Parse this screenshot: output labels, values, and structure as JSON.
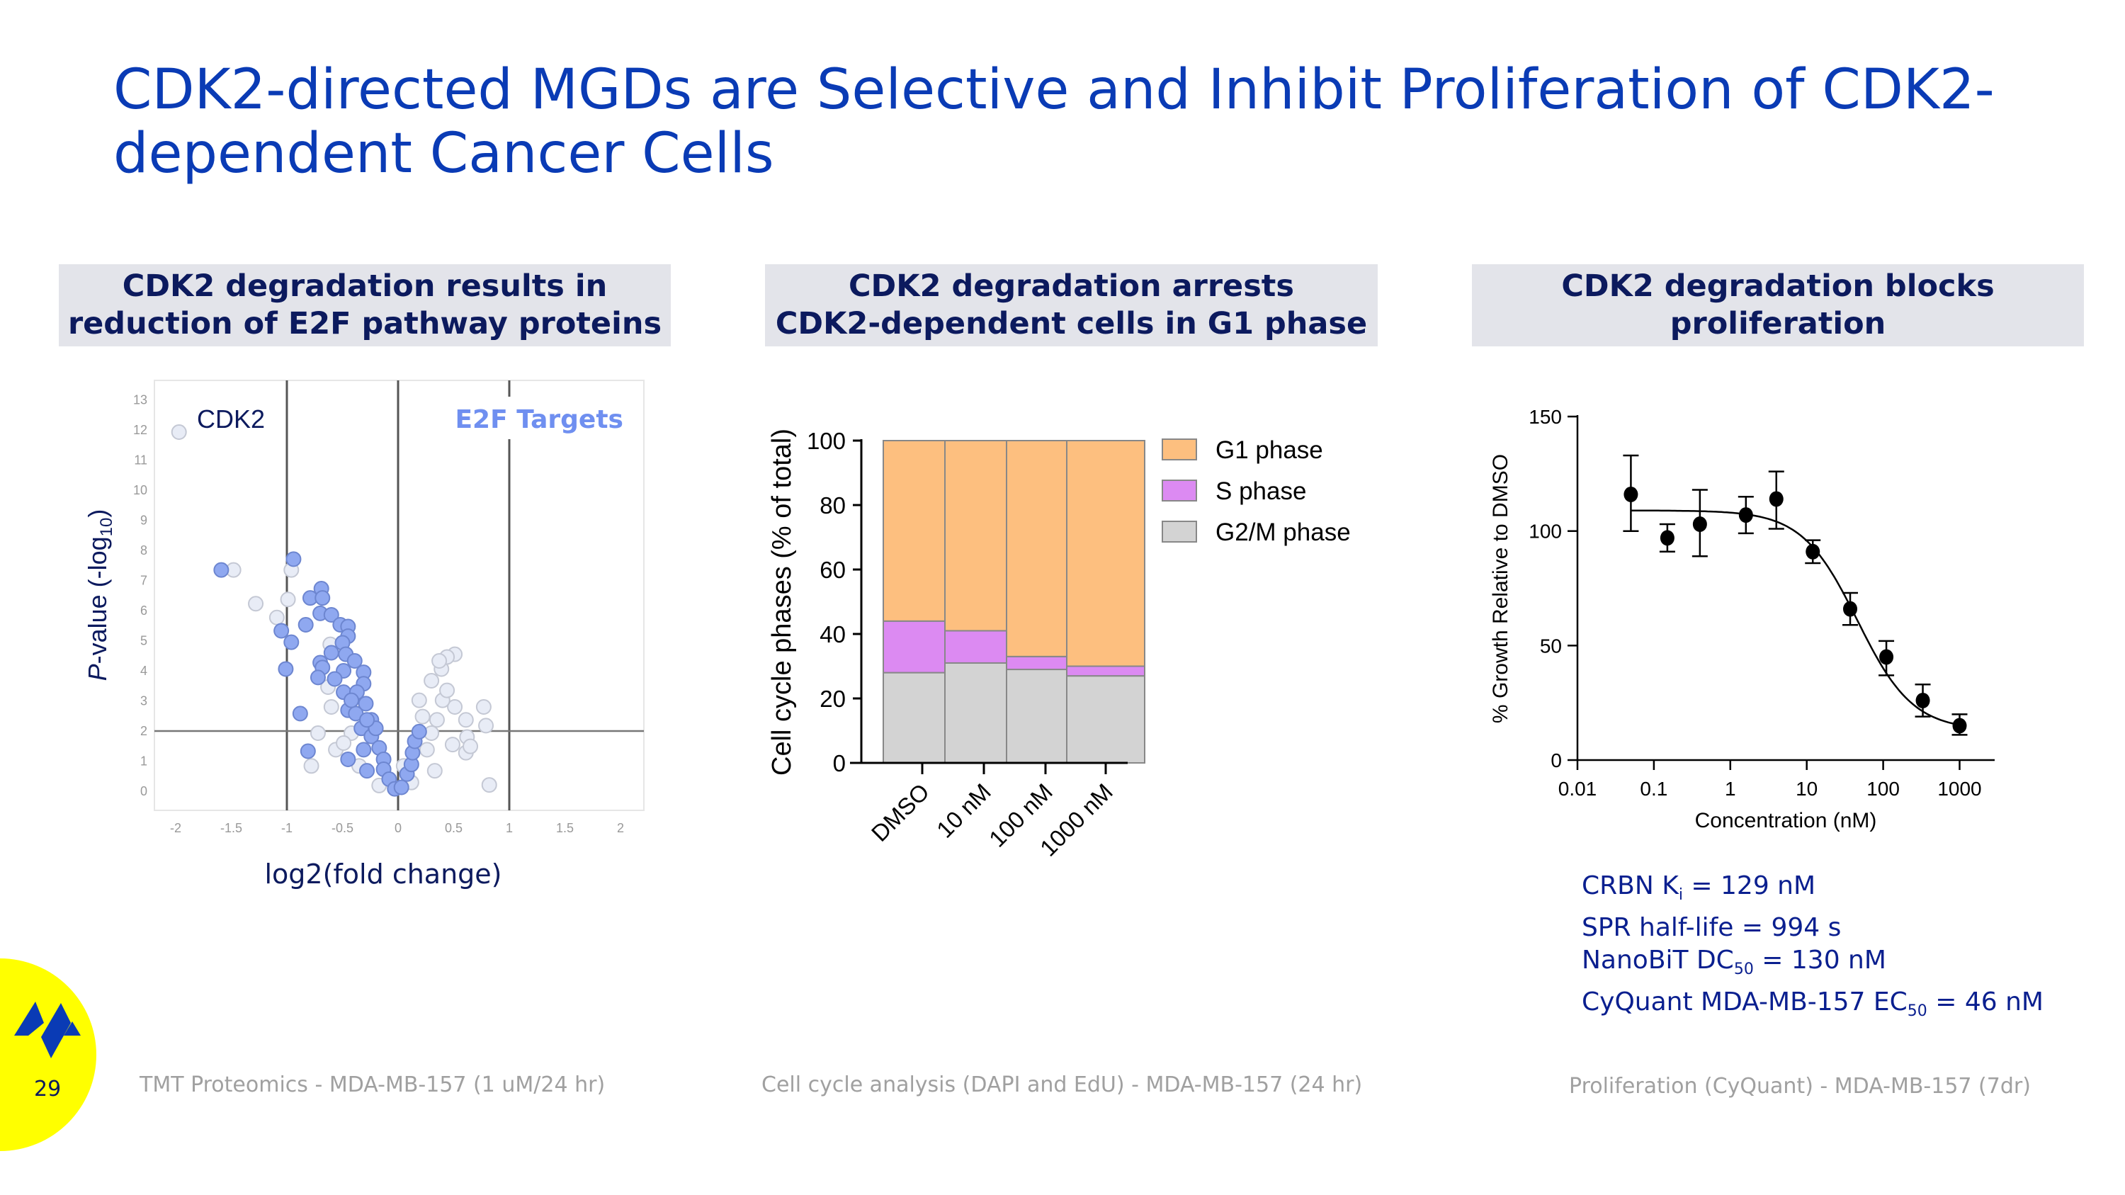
{
  "title": "CDK2-directed MGDs are Selective and Inhibit Proliferation of CDK2-dependent Cancer Cells",
  "panels": [
    {
      "header_line1": "CDK2 degradation results in",
      "header_line2": "reduction of E2F pathway proteins",
      "footer": "TMT Proteomics  - MDA-MB-157 (1 uM/24 hr)"
    },
    {
      "header_line1": "CDK2 degradation arrests",
      "header_line2": "CDK2-dependent cells in G1 phase",
      "footer": "Cell cycle analysis (DAPI and EdU) - MDA-MB-157 (24 hr)"
    },
    {
      "header_line1": "CDK2 degradation blocks proliferation",
      "footer": "Proliferation (CyQuant) - MDA-MB-157 (7dr)"
    }
  ],
  "stats": [
    {
      "pre": "CRBN K",
      "sub": "i",
      "post": " = 129 nM"
    },
    {
      "pre": "SPR half-life = 994 s",
      "sub": "",
      "post": ""
    },
    {
      "pre": "NanoBiT DC",
      "sub": "50",
      "post": " = 130 nM"
    },
    {
      "pre": "CyQuant MDA-MB-157 EC",
      "sub": "50",
      "post": " = 46 nM"
    }
  ],
  "page_number": "29",
  "colors": {
    "title": "#0a3bb5",
    "header_text": "#0c1a5e",
    "header_bg": "#e3e4ea",
    "logo_bg": "#ffff00",
    "logo": "#0a3bb5"
  },
  "chart_data": [
    {
      "type": "scatter",
      "xlabel": "log2(fold change)",
      "ylabel_main": "P",
      "ylabel_rest": "-value (-log",
      "ylabel_sub": "10",
      "ylabel_end": ")",
      "xlim": [
        -2.2,
        2.2
      ],
      "ylim": [
        -0.6,
        13.5
      ],
      "xticks": [
        -2,
        -1.5,
        -1,
        -0.5,
        0,
        0.5,
        1,
        1.5,
        2
      ],
      "yticks": [
        0,
        1,
        2,
        3,
        4,
        5,
        6,
        7,
        8,
        9,
        10,
        11,
        12,
        13
      ],
      "reference_lines": {
        "x": [
          -1,
          0,
          1
        ],
        "y": [
          2
        ]
      },
      "annotations": {
        "cdk2": "CDK2",
        "e2f": "E2F Targets"
      },
      "series": [
        {
          "name": "",
          "color": "#e8ecf6",
          "points": [
            [
              -1.97,
              11.93
            ],
            [
              -1.48,
              7.35
            ],
            [
              -0.96,
              7.35
            ],
            [
              -0.99,
              6.37
            ],
            [
              -1.28,
              6.23
            ],
            [
              -1.09,
              5.77
            ],
            [
              -0.78,
              0.84
            ],
            [
              -0.72,
              1.93
            ],
            [
              0.82,
              0.21
            ],
            [
              0.77,
              2.8
            ],
            [
              0.79,
              2.18
            ],
            [
              0.51,
              4.55
            ],
            [
              0.44,
              4.46
            ],
            [
              0.39,
              4.06
            ],
            [
              0.61,
              2.37
            ],
            [
              0.61,
              1.28
            ],
            [
              0.62,
              1.8
            ],
            [
              0.51,
              2.8
            ],
            [
              0.49,
              1.55
            ],
            [
              0.33,
              0.68
            ],
            [
              0.26,
              1.38
            ],
            [
              0.3,
              3.67
            ],
            [
              0.4,
              3.02
            ],
            [
              0.22,
              2.48
            ],
            [
              -0.56,
              1.38
            ],
            [
              -0.61,
              4.88
            ],
            [
              -0.6,
              2.8
            ],
            [
              -0.42,
              1.93
            ],
            [
              -0.35,
              0.84
            ],
            [
              -0.17,
              0.19
            ],
            [
              0.12,
              0.29
            ],
            [
              0.3,
              1.93
            ],
            [
              0.44,
              3.35
            ],
            [
              0.19,
              3.02
            ],
            [
              0.35,
              2.37
            ],
            [
              0.05,
              0.84
            ],
            [
              -0.63,
              3.46
            ],
            [
              -0.49,
              1.6
            ],
            [
              0.65,
              1.49
            ],
            [
              0.37,
              4.33
            ]
          ]
        },
        {
          "name": "E2F Targets",
          "color": "#8fa8f0",
          "points": [
            [
              -1.59,
              7.35
            ],
            [
              -0.94,
              7.71
            ],
            [
              -0.79,
              6.42
            ],
            [
              -0.69,
              6.73
            ],
            [
              -0.68,
              6.42
            ],
            [
              -0.7,
              5.91
            ],
            [
              -0.6,
              5.86
            ],
            [
              -0.83,
              5.53
            ],
            [
              -1.05,
              5.33
            ],
            [
              -0.96,
              4.95
            ],
            [
              -1.01,
              4.06
            ],
            [
              -0.52,
              5.53
            ],
            [
              -0.45,
              5.47
            ],
            [
              -0.45,
              5.15
            ],
            [
              -0.5,
              4.93
            ],
            [
              -0.6,
              4.6
            ],
            [
              -0.47,
              4.55
            ],
            [
              -0.39,
              4.33
            ],
            [
              -0.7,
              4.27
            ],
            [
              -0.68,
              4.11
            ],
            [
              -0.49,
              4.0
            ],
            [
              -0.72,
              3.78
            ],
            [
              -0.57,
              3.73
            ],
            [
              -0.31,
              3.95
            ],
            [
              -0.31,
              3.57
            ],
            [
              -0.49,
              3.29
            ],
            [
              -0.37,
              3.29
            ],
            [
              -0.88,
              2.58
            ],
            [
              -0.29,
              2.91
            ],
            [
              -0.45,
              2.69
            ],
            [
              -0.38,
              2.58
            ],
            [
              -0.24,
              2.37
            ],
            [
              -0.33,
              2.09
            ],
            [
              -0.24,
              1.82
            ],
            [
              -0.81,
              1.33
            ],
            [
              -0.45,
              1.06
            ],
            [
              -0.31,
              1.38
            ],
            [
              -0.17,
              1.44
            ],
            [
              -0.13,
              1.06
            ],
            [
              -0.28,
              0.68
            ],
            [
              -0.13,
              0.73
            ],
            [
              -0.08,
              0.4
            ],
            [
              -0.03,
              0.08
            ],
            [
              0.03,
              0.13
            ],
            [
              0.08,
              0.57
            ],
            [
              0.12,
              0.89
            ],
            [
              0.13,
              1.28
            ],
            [
              0.15,
              1.66
            ],
            [
              0.19,
              1.98
            ],
            [
              -0.2,
              2.09
            ],
            [
              -0.28,
              2.37
            ],
            [
              -0.42,
              3.02
            ]
          ]
        }
      ]
    },
    {
      "type": "bar",
      "stacked": true,
      "categories": [
        "DMSO",
        "10 nM",
        "100 nM",
        "1000 nM"
      ],
      "ylabel": "Cell cycle phases (% of total)",
      "ylim": [
        0,
        100
      ],
      "yticks": [
        0,
        20,
        40,
        60,
        80,
        100
      ],
      "legend_position": "right",
      "series": [
        {
          "name": "G2/M phase",
          "color": "#d3d3d3",
          "values": [
            28,
            31,
            29,
            27
          ]
        },
        {
          "name": "S phase",
          "color": "#dc8af2",
          "values": [
            16,
            10,
            4,
            3
          ]
        },
        {
          "name": "G1 phase",
          "color": "#fdbf7f",
          "values": [
            56,
            59,
            67,
            70
          ]
        }
      ],
      "legend_order": [
        "G1 phase",
        "S phase",
        "G2/M phase"
      ]
    },
    {
      "type": "scatter",
      "xscale": "log",
      "xlabel": "Concentration (nM)",
      "ylabel": "% Growth Relative to DMSO",
      "xlim": [
        0.01,
        3000
      ],
      "ylim": [
        0,
        150
      ],
      "xticks": [
        "0.01",
        "0.1",
        "1",
        "10",
        "100",
        "1000"
      ],
      "yticks": [
        0,
        50,
        100,
        150
      ],
      "points": [
        {
          "x": 0.05,
          "y": 116,
          "err": [
            100,
            133
          ]
        },
        {
          "x": 0.15,
          "y": 97,
          "err": [
            91,
            103
          ]
        },
        {
          "x": 0.4,
          "y": 103,
          "err": [
            89,
            118
          ]
        },
        {
          "x": 1.6,
          "y": 107,
          "err": [
            99,
            115
          ]
        },
        {
          "x": 4,
          "y": 114,
          "err": [
            101,
            126
          ]
        },
        {
          "x": 12,
          "y": 91,
          "err": [
            86,
            96
          ]
        },
        {
          "x": 37,
          "y": 66,
          "err": [
            59,
            73
          ]
        },
        {
          "x": 110,
          "y": 45,
          "err": [
            37,
            52
          ]
        },
        {
          "x": 330,
          "y": 26,
          "err": [
            19,
            33
          ]
        },
        {
          "x": 1000,
          "y": 15,
          "err": [
            11,
            20
          ]
        }
      ],
      "fit": {
        "top": 109,
        "bottom": 13,
        "ec50": 46,
        "hill": 1.2
      }
    }
  ]
}
